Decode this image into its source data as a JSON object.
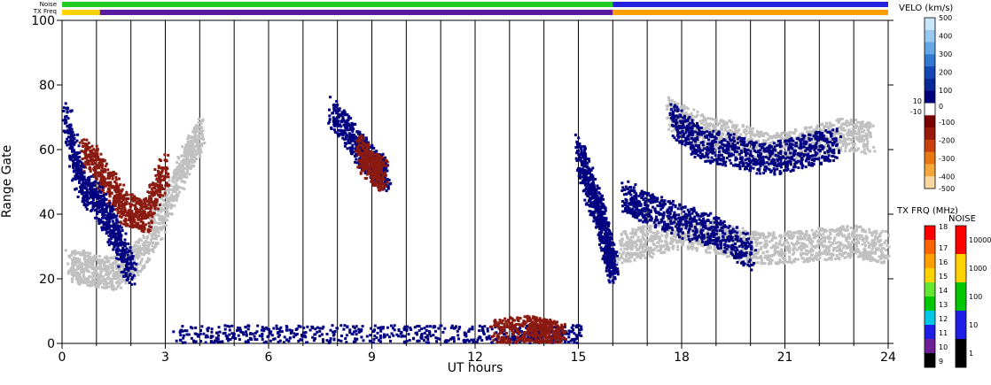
{
  "chart_data": {
    "type": "heatmap",
    "xlabel": "UT hours",
    "ylabel": "Range Gate",
    "xlim": [
      0,
      24
    ],
    "ylim": [
      0,
      100
    ],
    "x_ticks": [
      "0",
      "3",
      "6",
      "9",
      "12",
      "15",
      "18",
      "21",
      "24"
    ],
    "y_ticks": [
      "0",
      "20",
      "40",
      "60",
      "80",
      "100"
    ],
    "strip_labels": {
      "noise": "Noise",
      "txfreq": "TX Freq"
    },
    "velocity_scale": {
      "title": "VELO (km/s)",
      "labels": [
        "500",
        "400",
        "300",
        "200",
        "100",
        "0",
        "10",
        "-10",
        "-100",
        "-200",
        "-300",
        "-400",
        "-500"
      ],
      "colors": [
        "#c8e6fa",
        "#96c8f0",
        "#64a6e6",
        "#3278d2",
        "#1446b4",
        "#0a2896",
        "#00007a",
        "#ffffff",
        "#7a0000",
        "#9a1a0a",
        "#c8400a",
        "#e87814",
        "#f4a83c",
        "#f8d8a0"
      ]
    },
    "freq_scale": {
      "title": "TX FRQ (MHz)",
      "labels": [
        "18",
        "17",
        "16",
        "15",
        "14",
        "13",
        "12",
        "11",
        "10",
        "9"
      ],
      "colors": [
        "#ff0000",
        "#ff6400",
        "#ffa000",
        "#ffd200",
        "#64e632",
        "#00c800",
        "#00c8e6",
        "#1e1ee6",
        "#6e1e96",
        "#000000"
      ]
    },
    "noise_scale": {
      "title": "NOISE",
      "labels": [
        "10000",
        "1000",
        "100",
        "10",
        "1"
      ],
      "colors": [
        "#ff0000",
        "#ffd200",
        "#00c800",
        "#1e1ee6",
        "#000000"
      ]
    },
    "noise_strip": [
      {
        "start": 0,
        "end": 16,
        "color": "#22cc22"
      },
      {
        "start": 16,
        "end": 24,
        "color": "#2222dd"
      }
    ],
    "freq_strip": [
      {
        "start": 0,
        "end": 1.1,
        "color": "#ffd200"
      },
      {
        "start": 1.1,
        "end": 16,
        "color": "#5a1aa0"
      },
      {
        "start": 16,
        "end": 24,
        "color": "#ffa000"
      }
    ],
    "series": [
      {
        "color": "#c0c0c0",
        "x": [
          0.2,
          0.8,
          1.5,
          2.3,
          3.0,
          3.6,
          4.0
        ],
        "y": [
          25,
          23,
          22,
          28,
          42,
          58,
          66
        ]
      },
      {
        "color": "#8b1a10",
        "x": [
          0.6,
          1.2,
          1.8,
          2.4,
          3.0
        ],
        "y": [
          60,
          52,
          42,
          40,
          55
        ]
      },
      {
        "color": "#000080",
        "x": [
          0.1,
          0.5,
          1.0,
          1.5,
          2.0
        ],
        "y": [
          70,
          50,
          44,
          35,
          22
        ]
      },
      {
        "color": "#000080",
        "x": [
          7.8,
          8.5,
          9.0,
          9.4
        ],
        "y": [
          72,
          62,
          56,
          52
        ]
      },
      {
        "color": "#8b1a10",
        "x": [
          8.6,
          9.0,
          9.3
        ],
        "y": [
          60,
          55,
          52
        ]
      },
      {
        "color": "#000080",
        "x": [
          15.0,
          15.3,
          15.6,
          15.8,
          16.0
        ],
        "y": [
          60,
          48,
          40,
          30,
          24
        ]
      },
      {
        "color": "#c0c0c0",
        "x": [
          16.2,
          17.0,
          18.0,
          19.0,
          20.0,
          21.0,
          22.0,
          23.0,
          23.9
        ],
        "y": [
          30,
          32,
          35,
          33,
          30,
          30,
          31,
          32,
          30
        ]
      },
      {
        "color": "#000080",
        "x": [
          16.3,
          17.0,
          18.0,
          19.0,
          20.0
        ],
        "y": [
          46,
          42,
          38,
          35,
          28
        ]
      },
      {
        "color": "#c0c0c0",
        "x": [
          17.6,
          18.5,
          19.5,
          20.5,
          21.5,
          22.5,
          23.5
        ],
        "y": [
          72,
          66,
          64,
          60,
          62,
          65,
          64
        ]
      },
      {
        "color": "#000080",
        "x": [
          17.7,
          18.5,
          19.5,
          20.5,
          21.5,
          22.5
        ],
        "y": [
          70,
          62,
          60,
          57,
          60,
          62
        ]
      },
      {
        "color": "#000080",
        "x": [
          3.3,
          5,
          7,
          9,
          11,
          13,
          14,
          15
        ],
        "y": [
          1,
          1,
          1,
          1,
          1,
          1,
          1,
          1
        ]
      },
      {
        "color": "#8b1a10",
        "x": [
          12.5,
          13.5,
          14.0,
          14.5
        ],
        "y": [
          3,
          4,
          3,
          2
        ]
      }
    ]
  }
}
